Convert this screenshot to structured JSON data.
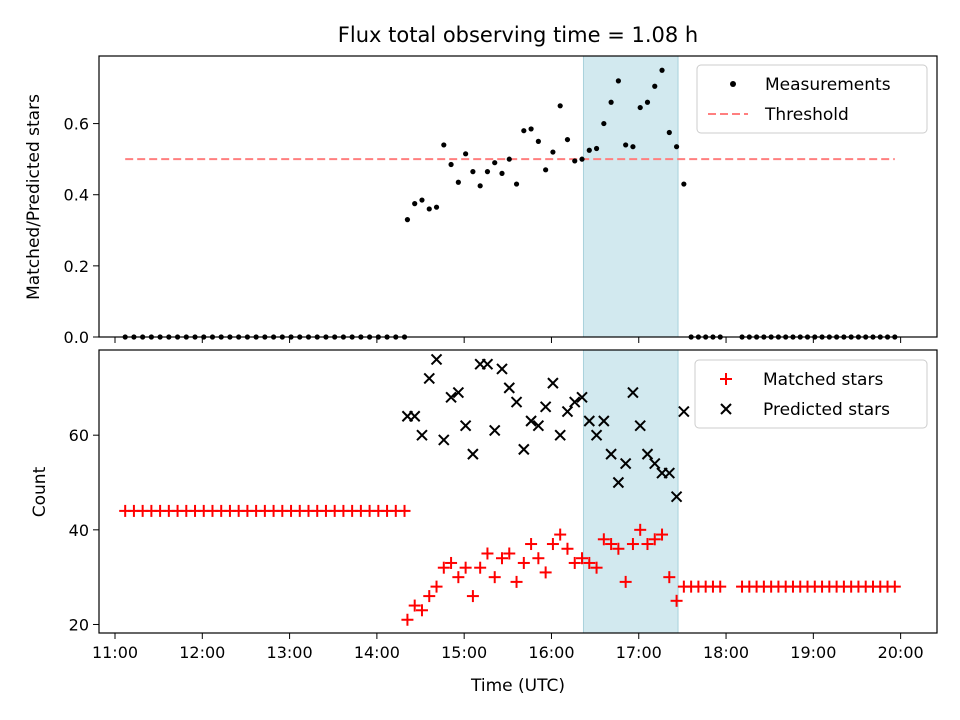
{
  "chart_data": [
    {
      "type": "scatter",
      "title": "Flux total observing time = 1.08 h",
      "ylabel": "Matched/Predicted stars",
      "xlabel": "",
      "xlim": [
        "10:49",
        "20:25"
      ],
      "ylim": [
        0,
        0.79
      ],
      "x_ticks_shown": false,
      "y_ticks": [
        "0.0",
        "0.2",
        "0.4",
        "0.6"
      ],
      "y_tick_values": [
        0,
        0.2,
        0.4,
        0.6
      ],
      "legend": {
        "position": "top-right",
        "entries": [
          "Measurements",
          "Threshold"
        ]
      },
      "highlight_span": {
        "start": "16:22",
        "end": "17:27",
        "color": "#d2e9ef"
      },
      "series": [
        {
          "name": "Measurements",
          "style": "dot",
          "color": "#000000",
          "points": [
            [
              "11:07",
              0
            ],
            [
              "11:13",
              0
            ],
            [
              "11:19",
              0
            ],
            [
              "11:25",
              0
            ],
            [
              "11:31",
              0
            ],
            [
              "11:37",
              0
            ],
            [
              "11:43",
              0
            ],
            [
              "11:49",
              0
            ],
            [
              "11:55",
              0
            ],
            [
              "12:01",
              0
            ],
            [
              "12:07",
              0
            ],
            [
              "12:13",
              0
            ],
            [
              "12:19",
              0
            ],
            [
              "12:25",
              0
            ],
            [
              "12:31",
              0
            ],
            [
              "12:37",
              0
            ],
            [
              "12:43",
              0
            ],
            [
              "12:49",
              0
            ],
            [
              "12:55",
              0
            ],
            [
              "13:01",
              0
            ],
            [
              "13:07",
              0
            ],
            [
              "13:13",
              0
            ],
            [
              "13:19",
              0
            ],
            [
              "13:25",
              0
            ],
            [
              "13:31",
              0
            ],
            [
              "13:37",
              0
            ],
            [
              "13:43",
              0
            ],
            [
              "13:49",
              0
            ],
            [
              "13:55",
              0
            ],
            [
              "14:01",
              0
            ],
            [
              "14:07",
              0
            ],
            [
              "14:13",
              0
            ],
            [
              "14:19",
              0
            ],
            [
              "14:21",
              0.33
            ],
            [
              "14:26",
              0.375
            ],
            [
              "14:31",
              0.385
            ],
            [
              "14:36",
              0.36
            ],
            [
              "14:41",
              0.365
            ],
            [
              "14:46",
              0.54
            ],
            [
              "14:51",
              0.485
            ],
            [
              "14:56",
              0.435
            ],
            [
              "15:01",
              0.515
            ],
            [
              "15:06",
              0.465
            ],
            [
              "15:11",
              0.425
            ],
            [
              "15:16",
              0.465
            ],
            [
              "15:21",
              0.49
            ],
            [
              "15:26",
              0.46
            ],
            [
              "15:31",
              0.5
            ],
            [
              "15:36",
              0.43
            ],
            [
              "15:41",
              0.58
            ],
            [
              "15:46",
              0.585
            ],
            [
              "15:51",
              0.55
            ],
            [
              "15:56",
              0.47
            ],
            [
              "16:01",
              0.52
            ],
            [
              "16:06",
              0.65
            ],
            [
              "16:11",
              0.555
            ],
            [
              "16:16",
              0.495
            ],
            [
              "16:21",
              0.5
            ],
            [
              "16:26",
              0.525
            ],
            [
              "16:31",
              0.53
            ],
            [
              "16:36",
              0.6
            ],
            [
              "16:41",
              0.66
            ],
            [
              "16:46",
              0.72
            ],
            [
              "16:51",
              0.54
            ],
            [
              "16:56",
              0.535
            ],
            [
              "17:01",
              0.645
            ],
            [
              "17:06",
              0.66
            ],
            [
              "17:11",
              0.705
            ],
            [
              "17:16",
              0.75
            ],
            [
              "17:21",
              0.575
            ],
            [
              "17:26",
              0.535
            ],
            [
              "17:31",
              0.43
            ],
            [
              "17:36",
              0
            ],
            [
              "17:41",
              0
            ],
            [
              "17:46",
              0
            ],
            [
              "17:51",
              0
            ],
            [
              "17:56",
              0
            ],
            [
              "18:11",
              0
            ],
            [
              "18:16",
              0
            ],
            [
              "18:21",
              0
            ],
            [
              "18:26",
              0
            ],
            [
              "18:31",
              0
            ],
            [
              "18:36",
              0
            ],
            [
              "18:41",
              0
            ],
            [
              "18:46",
              0
            ],
            [
              "18:51",
              0
            ],
            [
              "18:56",
              0
            ],
            [
              "19:01",
              0
            ],
            [
              "19:06",
              0
            ],
            [
              "19:11",
              0
            ],
            [
              "19:16",
              0
            ],
            [
              "19:21",
              0
            ],
            [
              "19:26",
              0
            ],
            [
              "19:31",
              0
            ],
            [
              "19:36",
              0
            ],
            [
              "19:41",
              0
            ],
            [
              "19:46",
              0
            ],
            [
              "19:51",
              0
            ],
            [
              "19:56",
              0
            ]
          ]
        },
        {
          "name": "Threshold",
          "style": "dashed-line",
          "color": "#ff7f7f",
          "points": [
            [
              "11:07",
              0.5
            ],
            [
              "19:56",
              0.5
            ]
          ]
        }
      ]
    },
    {
      "type": "scatter",
      "title": "",
      "xlabel": "Time (UTC)",
      "ylabel": "Count",
      "xlim": [
        "10:49",
        "20:25"
      ],
      "ylim": [
        18.2,
        78
      ],
      "x_ticks": [
        "11:00",
        "12:00",
        "13:00",
        "14:00",
        "15:00",
        "16:00",
        "17:00",
        "18:00",
        "19:00",
        "20:00"
      ],
      "y_ticks": [
        "20",
        "40",
        "60"
      ],
      "y_tick_values": [
        20,
        40,
        60
      ],
      "legend": {
        "position": "top-right",
        "entries": [
          "Matched stars",
          "Predicted stars"
        ]
      },
      "highlight_span": {
        "start": "16:22",
        "end": "17:27",
        "color": "#d2e9ef"
      },
      "series": [
        {
          "name": "Matched stars",
          "style": "plus",
          "color": "#ff0000",
          "points": [
            [
              "11:07",
              44
            ],
            [
              "11:13",
              44
            ],
            [
              "11:19",
              44
            ],
            [
              "11:25",
              44
            ],
            [
              "11:31",
              44
            ],
            [
              "11:37",
              44
            ],
            [
              "11:43",
              44
            ],
            [
              "11:49",
              44
            ],
            [
              "11:55",
              44
            ],
            [
              "12:01",
              44
            ],
            [
              "12:07",
              44
            ],
            [
              "12:13",
              44
            ],
            [
              "12:19",
              44
            ],
            [
              "12:25",
              44
            ],
            [
              "12:31",
              44
            ],
            [
              "12:37",
              44
            ],
            [
              "12:43",
              44
            ],
            [
              "12:49",
              44
            ],
            [
              "12:55",
              44
            ],
            [
              "13:01",
              44
            ],
            [
              "13:07",
              44
            ],
            [
              "13:13",
              44
            ],
            [
              "13:19",
              44
            ],
            [
              "13:25",
              44
            ],
            [
              "13:31",
              44
            ],
            [
              "13:37",
              44
            ],
            [
              "13:43",
              44
            ],
            [
              "13:49",
              44
            ],
            [
              "13:55",
              44
            ],
            [
              "14:01",
              44
            ],
            [
              "14:07",
              44
            ],
            [
              "14:13",
              44
            ],
            [
              "14:19",
              44
            ],
            [
              "14:21",
              21
            ],
            [
              "14:26",
              24
            ],
            [
              "14:31",
              23
            ],
            [
              "14:36",
              26
            ],
            [
              "14:41",
              28
            ],
            [
              "14:46",
              32
            ],
            [
              "14:51",
              33
            ],
            [
              "14:56",
              30
            ],
            [
              "15:01",
              32
            ],
            [
              "15:06",
              26
            ],
            [
              "15:11",
              32
            ],
            [
              "15:16",
              35
            ],
            [
              "15:21",
              30
            ],
            [
              "15:26",
              34
            ],
            [
              "15:31",
              35
            ],
            [
              "15:36",
              29
            ],
            [
              "15:41",
              33
            ],
            [
              "15:46",
              37
            ],
            [
              "15:51",
              34
            ],
            [
              "15:56",
              31
            ],
            [
              "16:01",
              37
            ],
            [
              "16:06",
              39
            ],
            [
              "16:11",
              36
            ],
            [
              "16:16",
              33
            ],
            [
              "16:21",
              34
            ],
            [
              "16:26",
              33
            ],
            [
              "16:31",
              32
            ],
            [
              "16:36",
              38
            ],
            [
              "16:41",
              37
            ],
            [
              "16:46",
              36
            ],
            [
              "16:51",
              29
            ],
            [
              "16:56",
              37
            ],
            [
              "17:01",
              40
            ],
            [
              "17:06",
              37
            ],
            [
              "17:11",
              38
            ],
            [
              "17:16",
              39
            ],
            [
              "17:21",
              30
            ],
            [
              "17:26",
              25
            ],
            [
              "17:31",
              28
            ],
            [
              "17:36",
              28
            ],
            [
              "17:41",
              28
            ],
            [
              "17:46",
              28
            ],
            [
              "17:51",
              28
            ],
            [
              "17:56",
              28
            ],
            [
              "18:11",
              28
            ],
            [
              "18:16",
              28
            ],
            [
              "18:21",
              28
            ],
            [
              "18:26",
              28
            ],
            [
              "18:31",
              28
            ],
            [
              "18:36",
              28
            ],
            [
              "18:41",
              28
            ],
            [
              "18:46",
              28
            ],
            [
              "18:51",
              28
            ],
            [
              "18:56",
              28
            ],
            [
              "19:01",
              28
            ],
            [
              "19:06",
              28
            ],
            [
              "19:11",
              28
            ],
            [
              "19:16",
              28
            ],
            [
              "19:21",
              28
            ],
            [
              "19:26",
              28
            ],
            [
              "19:31",
              28
            ],
            [
              "19:36",
              28
            ],
            [
              "19:41",
              28
            ],
            [
              "19:46",
              28
            ],
            [
              "19:51",
              28
            ],
            [
              "19:56",
              28
            ]
          ]
        },
        {
          "name": "Predicted stars",
          "style": "x",
          "color": "#000000",
          "points": [
            [
              "14:21",
              64
            ],
            [
              "14:26",
              64
            ],
            [
              "14:31",
              60
            ],
            [
              "14:36",
              72
            ],
            [
              "14:41",
              76
            ],
            [
              "14:46",
              59
            ],
            [
              "14:51",
              68
            ],
            [
              "14:56",
              69
            ],
            [
              "15:01",
              62
            ],
            [
              "15:06",
              56
            ],
            [
              "15:11",
              75
            ],
            [
              "15:16",
              75
            ],
            [
              "15:21",
              61
            ],
            [
              "15:26",
              74
            ],
            [
              "15:31",
              70
            ],
            [
              "15:36",
              67
            ],
            [
              "15:41",
              57
            ],
            [
              "15:46",
              63
            ],
            [
              "15:51",
              62
            ],
            [
              "15:56",
              66
            ],
            [
              "16:01",
              71
            ],
            [
              "16:06",
              60
            ],
            [
              "16:11",
              65
            ],
            [
              "16:16",
              67
            ],
            [
              "16:21",
              68
            ],
            [
              "16:26",
              63
            ],
            [
              "16:31",
              60
            ],
            [
              "16:36",
              63
            ],
            [
              "16:41",
              56
            ],
            [
              "16:46",
              50
            ],
            [
              "16:51",
              54
            ],
            [
              "16:56",
              69
            ],
            [
              "17:01",
              62
            ],
            [
              "17:06",
              56
            ],
            [
              "17:11",
              54
            ],
            [
              "17:16",
              52
            ],
            [
              "17:21",
              52
            ],
            [
              "17:26",
              47
            ],
            [
              "17:31",
              65
            ]
          ]
        }
      ]
    }
  ]
}
